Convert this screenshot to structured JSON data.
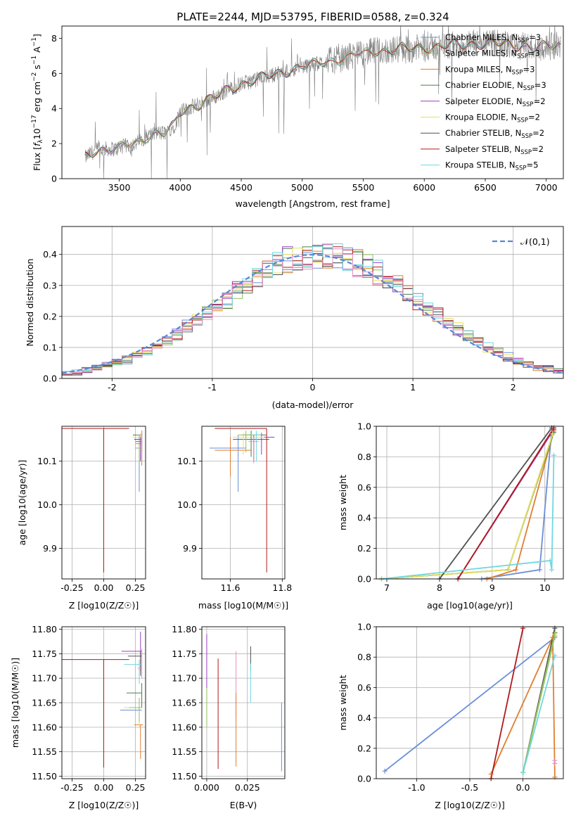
{
  "title": "PLATE=2244, MJD=53795, FIBERID=0588, z=0.324",
  "chart_data": [
    {
      "id": "spectrum",
      "type": "line",
      "xlabel": "wavelength [Angstrom, rest frame]",
      "ylabel": "Flux [f_λ 10^-17 erg cm^-2 s^-1 A^-1]",
      "xlim": [
        3030,
        7140
      ],
      "ylim": [
        0,
        8.7
      ],
      "xticks": [
        3500,
        4000,
        4500,
        5000,
        5500,
        6000,
        6500,
        7000
      ],
      "yticks": [
        0,
        2,
        4,
        6,
        8
      ],
      "grid": false,
      "legend": "top-right",
      "data_color": "#808080",
      "data_anchor_x": [
        3220,
        3300,
        3400,
        3480,
        3560,
        3640,
        3720,
        3800,
        3880,
        3950,
        4000,
        4100,
        4200,
        4300,
        4400,
        4500,
        4600,
        4700,
        4800,
        4900,
        5000,
        5100,
        5200,
        5300,
        5400,
        5500,
        5600,
        5700,
        5800,
        5900,
        6000,
        6100,
        6200,
        6300,
        6400,
        6500,
        6600,
        6700,
        6800,
        6900,
        7000,
        7100
      ],
      "data_anchor_y": [
        1.2,
        1.6,
        1.7,
        1.7,
        1.9,
        2.0,
        2.4,
        2.6,
        2.6,
        3.0,
        3.8,
        4.1,
        4.4,
        4.7,
        5.1,
        5.4,
        5.6,
        5.8,
        6.0,
        6.2,
        6.4,
        6.5,
        6.7,
        6.8,
        7.0,
        7.1,
        7.3,
        7.3,
        7.4,
        7.4,
        7.5,
        7.5,
        7.6,
        7.6,
        7.7,
        7.7,
        7.7,
        7.6,
        7.6,
        7.5,
        7.5,
        7.6
      ],
      "series": [
        {
          "name": "Chabrier MILES, N_SSP=3",
          "color": "#6a8fd8"
        },
        {
          "name": "Salpeter MILES, N_SSP=3",
          "color": "#90c060"
        },
        {
          "name": "Kroupa MILES, N_SSP=3",
          "color": "#e07e30"
        },
        {
          "name": "Chabrier ELODIE, N_SSP=3",
          "color": "#4d7a4d"
        },
        {
          "name": "Salpeter ELODIE, N_SSP=2",
          "color": "#9a3fc0"
        },
        {
          "name": "Kroupa ELODIE, N_SSP=2",
          "color": "#e6e060"
        },
        {
          "name": "Chabrier STELIB, N_SSP=2",
          "color": "#505050"
        },
        {
          "name": "Salpeter STELIB, N_SSP=2",
          "color": "#b01a1a"
        },
        {
          "name": "Kroupa STELIB, N_SSP=5",
          "color": "#70d8e0"
        }
      ]
    },
    {
      "id": "residuals",
      "type": "line",
      "xlabel": "(data-model)/error",
      "ylabel": "Normed distribution",
      "xlim": [
        -2.5,
        2.5
      ],
      "ylim": [
        0,
        0.49
      ],
      "xticks": [
        -2,
        -1,
        0,
        1,
        2
      ],
      "yticks": [
        0.0,
        0.1,
        0.2,
        0.3,
        0.4
      ],
      "grid": true,
      "legend": "top-right",
      "gaussian": {
        "name": "𝒩(0,1)",
        "color": "#5b86d6",
        "mu": 0,
        "sigma": 1
      },
      "bin_width": 0.1,
      "series_colors": [
        "#6a8fd8",
        "#90c060",
        "#e07e30",
        "#4d7a4d",
        "#9a3fc0",
        "#e6e060",
        "#505050",
        "#b01a1a",
        "#70d8e0",
        "#e890c0"
      ]
    },
    {
      "id": "age_vs_Z",
      "type": "scatter",
      "xlabel": "Z [log10(Z/Z☉)]",
      "ylabel": "age [log10(age/yr)]",
      "xlim": [
        -0.33,
        0.33
      ],
      "ylim": [
        9.83,
        10.18
      ],
      "xticks": [
        -0.25,
        0.0,
        0.25
      ],
      "yticks": [
        9.9,
        10.0,
        10.1
      ],
      "grid": true,
      "points": [
        {
          "x": 0.0,
          "y": 10.175,
          "ex": [
            0.33,
            0.2
          ],
          "ey": [
            0.33,
            0.0
          ],
          "color": "#b01a1a"
        },
        {
          "x": 0.28,
          "y": 10.13,
          "ex": [
            0.03,
            0.02
          ],
          "ey": [
            0.1,
            0.03
          ],
          "color": "#6a8fd8"
        },
        {
          "x": 0.29,
          "y": 10.15,
          "ex": [
            0.05,
            0.01
          ],
          "ey": [
            0.05,
            0.01
          ],
          "color": "#505050"
        },
        {
          "x": 0.29,
          "y": 10.155,
          "ex": [
            0.06,
            0.01
          ],
          "ey": [
            0.04,
            0.01
          ],
          "color": "#e6e060"
        },
        {
          "x": 0.3,
          "y": 10.14,
          "ex": [
            0.05,
            0.0
          ],
          "ey": [
            0.05,
            0.02
          ],
          "color": "#e07e30"
        },
        {
          "x": 0.3,
          "y": 10.16,
          "ex": [
            0.03,
            0.0
          ],
          "ey": [
            0.06,
            0.01
          ],
          "color": "#70d8e0"
        },
        {
          "x": 0.29,
          "y": 10.145,
          "ex": [
            0.04,
            0.01
          ],
          "ey": [
            0.04,
            0.01
          ],
          "color": "#9a3fc0"
        },
        {
          "x": 0.3,
          "y": 10.16,
          "ex": [
            0.07,
            0.0
          ],
          "ey": [
            0.04,
            0.01
          ],
          "color": "#4d7a4d"
        },
        {
          "x": 0.28,
          "y": 10.13,
          "ex": [
            0.02,
            0.02
          ],
          "ey": [
            0.03,
            0.02
          ],
          "color": "#90c060"
        },
        {
          "x": 0.3,
          "y": 10.16,
          "ex": [
            0.03,
            0.0
          ],
          "ey": [
            0.06,
            0.01
          ],
          "color": "#e890c0"
        }
      ]
    },
    {
      "id": "age_vs_mass",
      "type": "scatter",
      "xlabel": "mass [log10(M/M☉)]",
      "ylabel": "",
      "xlim": [
        11.49,
        11.81
      ],
      "ylim": [
        9.83,
        10.18
      ],
      "xticks": [
        11.6,
        11.8
      ],
      "yticks": [
        9.9,
        10.0,
        10.1
      ],
      "grid": true,
      "points": [
        {
          "x": 11.74,
          "y": 10.175,
          "ex": [
            0.2,
            0.0
          ],
          "ey": [
            0.33,
            0.0
          ],
          "color": "#b01a1a"
        },
        {
          "x": 11.63,
          "y": 10.13,
          "ex": [
            0.11,
            0.03
          ],
          "ey": [
            0.1,
            0.03
          ],
          "color": "#6a8fd8"
        },
        {
          "x": 11.6,
          "y": 10.125,
          "ex": [
            0.06,
            0.08
          ],
          "ey": [
            0.06,
            0.03
          ],
          "color": "#e07e30"
        },
        {
          "x": 11.72,
          "y": 10.155,
          "ex": [
            0.1,
            0.05
          ],
          "ey": [
            0.04,
            0.01
          ],
          "color": "#9a3fc0"
        },
        {
          "x": 11.69,
          "y": 10.15,
          "ex": [
            0.08,
            0.06
          ],
          "ey": [
            0.05,
            0.01
          ],
          "color": "#505050"
        },
        {
          "x": 11.65,
          "y": 10.155,
          "ex": [
            0.04,
            0.08
          ],
          "ey": [
            0.04,
            0.01
          ],
          "color": "#e6e060"
        },
        {
          "x": 11.68,
          "y": 10.16,
          "ex": [
            0.03,
            0.06
          ],
          "ey": [
            0.05,
            0.01
          ],
          "color": "#4d7a4d"
        },
        {
          "x": 11.66,
          "y": 10.16,
          "ex": [
            0.03,
            0.05
          ],
          "ey": [
            0.04,
            0.01
          ],
          "color": "#90c060"
        },
        {
          "x": 11.7,
          "y": 10.16,
          "ex": [
            0.02,
            0.02
          ],
          "ey": [
            0.06,
            0.01
          ],
          "color": "#70d8e0"
        },
        {
          "x": 11.69,
          "y": 10.145,
          "ex": [
            0.02,
            0.02
          ],
          "ey": [
            0.05,
            0.01
          ],
          "color": "#e890c0"
        }
      ]
    },
    {
      "id": "cumulative_age",
      "type": "line",
      "xlabel": "age [log10(age/yr)]",
      "ylabel": "mass weight",
      "xlim": [
        6.8,
        10.35
      ],
      "ylim": [
        0,
        1.0
      ],
      "xticks": [
        7,
        8,
        9,
        10
      ],
      "yticks": [
        0.0,
        0.2,
        0.4,
        0.6,
        0.8,
        1.0
      ],
      "grid": true,
      "series": [
        {
          "color": "#6a8fd8",
          "x": [
            8.8,
            9.9,
            10.13
          ],
          "y": [
            0.0,
            0.06,
            0.98
          ]
        },
        {
          "color": "#90c060",
          "x": [
            6.9,
            9.3,
            10.15
          ],
          "y": [
            0.0,
            0.06,
            0.95
          ]
        },
        {
          "color": "#e07e30",
          "x": [
            8.9,
            9.45,
            10.17
          ],
          "y": [
            0.0,
            0.06,
            0.97
          ]
        },
        {
          "color": "#4d7a4d",
          "x": [
            6.9,
            9.3,
            10.17
          ],
          "y": [
            0.0,
            0.06,
            0.96
          ]
        },
        {
          "color": "#9a3fc0",
          "x": [
            8.35,
            10.17
          ],
          "y": [
            0.0,
            0.98
          ]
        },
        {
          "color": "#e6e060",
          "x": [
            6.9,
            9.3,
            10.15
          ],
          "y": [
            0.0,
            0.06,
            0.95
          ]
        },
        {
          "color": "#505050",
          "x": [
            8.0,
            10.13
          ],
          "y": [
            0.0,
            0.99
          ]
        },
        {
          "color": "#b01a1a",
          "x": [
            8.35,
            10.17
          ],
          "y": [
            0.0,
            0.99
          ]
        },
        {
          "color": "#70d8e0",
          "x": [
            6.9,
            10.1,
            10.13,
            10.17
          ],
          "y": [
            0.0,
            0.12,
            0.06,
            0.81
          ]
        }
      ]
    },
    {
      "id": "mass_vs_Z",
      "type": "scatter",
      "xlabel": "Z [log10(Z/Z☉)]",
      "ylabel": "mass [log10(M/M☉)]",
      "xlim": [
        -0.33,
        0.33
      ],
      "ylim": [
        11.495,
        11.805
      ],
      "xticks": [
        -0.25,
        0.0,
        0.25
      ],
      "yticks": [
        11.5,
        11.55,
        11.6,
        11.65,
        11.7,
        11.75,
        11.8
      ],
      "grid": true,
      "points": [
        {
          "x": 0.0,
          "y": 11.738,
          "ex": [
            0.33,
            0.2
          ],
          "ey": [
            0.22,
            0.0
          ],
          "color": "#b01a1a"
        },
        {
          "x": 0.28,
          "y": 11.635,
          "ex": [
            0.15,
            0.02
          ],
          "ey": [
            0.03,
            0.02
          ],
          "color": "#6a8fd8"
        },
        {
          "x": 0.29,
          "y": 11.605,
          "ex": [
            0.05,
            0.02
          ],
          "ey": [
            0.07,
            0.0
          ],
          "color": "#e07e30"
        },
        {
          "x": 0.29,
          "y": 11.755,
          "ex": [
            0.15,
            0.01
          ],
          "ey": [
            0.04,
            0.04
          ],
          "color": "#9a3fc0"
        },
        {
          "x": 0.29,
          "y": 11.745,
          "ex": [
            0.1,
            0.01
          ],
          "ey": [
            0.04,
            0.01
          ],
          "color": "#505050"
        },
        {
          "x": 0.28,
          "y": 11.64,
          "ex": [
            0.12,
            0.02
          ],
          "ey": [
            0.04,
            0.02
          ],
          "color": "#e6e060"
        },
        {
          "x": 0.3,
          "y": 11.67,
          "ex": [
            0.12,
            0.0
          ],
          "ey": [
            0.03,
            0.02
          ],
          "color": "#4d7a4d"
        },
        {
          "x": 0.28,
          "y": 11.64,
          "ex": [
            0.08,
            0.02
          ],
          "ey": [
            0.03,
            0.02
          ],
          "color": "#90c060"
        },
        {
          "x": 0.28,
          "y": 11.728,
          "ex": [
            0.12,
            0.02
          ],
          "ey": [
            0.04,
            0.01
          ],
          "color": "#70d8e0"
        },
        {
          "x": 0.3,
          "y": 11.72,
          "ex": [
            0.03,
            0.0
          ],
          "ey": [
            0.02,
            0.04
          ],
          "color": "#e890c0"
        }
      ]
    },
    {
      "id": "mass_vs_ebv",
      "type": "scatter",
      "xlabel": "E(B-V)",
      "ylabel": "",
      "xlim": [
        -0.003,
        0.048
      ],
      "ylim": [
        11.495,
        11.805
      ],
      "xticks": [
        0.0,
        0.025
      ],
      "yticks": [
        11.5,
        11.55,
        11.6,
        11.65,
        11.7,
        11.75,
        11.8
      ],
      "grid": true,
      "points": [
        {
          "x": 0.0,
          "y": 11.73,
          "ey": [
            0.05,
            0.06
          ],
          "color": "#9a3fc0"
        },
        {
          "x": 0.0,
          "y": 11.65,
          "ey": [
            0.05,
            0.03
          ],
          "color": "#90c060"
        },
        {
          "x": 0.007,
          "y": 11.65,
          "ey": [
            0.135,
            0.09
          ],
          "color": "#b01a1a"
        },
        {
          "x": 0.018,
          "y": 11.7,
          "ey": [
            0.08,
            0.055
          ],
          "color": "#e890c0"
        },
        {
          "x": 0.018,
          "y": 11.62,
          "ey": [
            0.1,
            0.05
          ],
          "color": "#e07e30"
        },
        {
          "x": 0.027,
          "y": 11.745,
          "ey": [
            0.03,
            0.02
          ],
          "color": "#505050"
        },
        {
          "x": 0.027,
          "y": 11.7,
          "ey": [
            0.05,
            0.03
          ],
          "color": "#70d8e0"
        },
        {
          "x": 0.046,
          "y": 11.6,
          "ey": [
            0.09,
            0.05
          ],
          "color": "#6a8fd8"
        }
      ]
    },
    {
      "id": "cumulative_Z",
      "type": "line",
      "xlabel": "Z [log10(Z/Z☉)]",
      "ylabel": "mass weight",
      "xlim": [
        -1.38,
        0.38
      ],
      "ylim": [
        0,
        1.0
      ],
      "xticks": [
        -1.0,
        -0.5,
        0.0
      ],
      "yticks": [
        0.0,
        0.2,
        0.4,
        0.6,
        0.8,
        1.0
      ],
      "grid": true,
      "series": [
        {
          "color": "#6a8fd8",
          "x": [
            -1.3,
            0.3
          ],
          "y": [
            0.05,
            0.93
          ]
        },
        {
          "color": "#e07e30",
          "x": [
            -0.3,
            0.28
          ],
          "y": [
            0.03,
            0.93
          ]
        },
        {
          "color": "#e07e30",
          "x": [
            0.28,
            0.3
          ],
          "y": [
            0.93,
            0.01
          ]
        },
        {
          "color": "#b01a1a",
          "x": [
            -0.3,
            0.0
          ],
          "y": [
            0.0,
            0.99
          ]
        },
        {
          "color": "#505050",
          "x": [
            0.0,
            0.3
          ],
          "y": [
            0.04,
            0.99
          ]
        },
        {
          "color": "#4d7a4d",
          "x": [
            0.0,
            0.3
          ],
          "y": [
            0.04,
            0.96
          ]
        },
        {
          "color": "#e6e060",
          "x": [
            0.0,
            0.3
          ],
          "y": [
            0.04,
            0.95
          ]
        },
        {
          "color": "#90c060",
          "x": [
            0.0,
            0.3
          ],
          "y": [
            0.04,
            0.94
          ]
        },
        {
          "color": "#70d8e0",
          "x": [
            0.0,
            0.3
          ],
          "y": [
            0.04,
            0.81
          ]
        },
        {
          "color": "#e890c0",
          "x": [
            0.3,
            0.3
          ],
          "y": [
            0.12,
            0.1
          ]
        }
      ]
    }
  ]
}
